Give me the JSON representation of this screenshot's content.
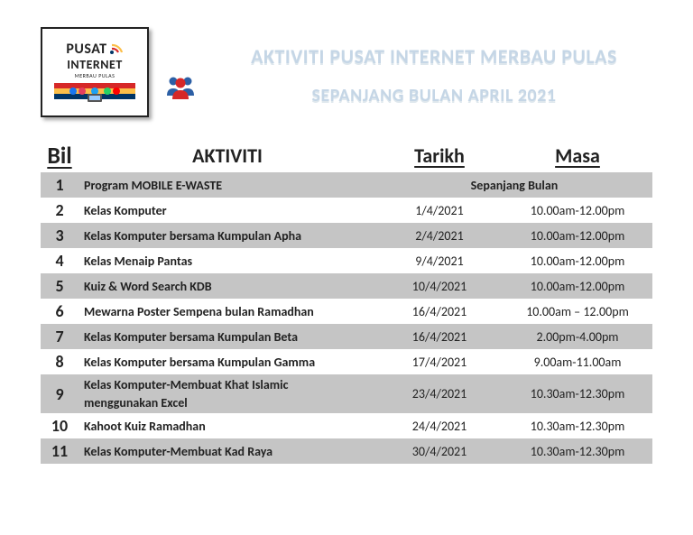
{
  "logo": {
    "top": "PUSAT",
    "bottom": "INTERNET",
    "sub": "MERBAU PULAS"
  },
  "title": "AKTIVITI PUSAT INTERNET MERBAU PULAS",
  "subtitle": "SEPANJANG BULAN APRIL 2021",
  "headers": {
    "bil": "Bil",
    "aktiviti": "AKTIVITI",
    "tarikh": "Tarikh",
    "masa": "Masa"
  },
  "row_span_text": "Sepanjang Bulan",
  "rows": [
    {
      "bil": "1",
      "aktiviti": "Program MOBILE E-WASTE",
      "tarikh": "",
      "masa": "",
      "alt": true,
      "span": true
    },
    {
      "bil": "2",
      "aktiviti": "Kelas Komputer",
      "tarikh": "1/4/2021",
      "masa": "10.00am-12.00pm",
      "alt": false
    },
    {
      "bil": "3",
      "aktiviti": "Kelas Komputer bersama Kumpulan Apha",
      "tarikh": "2/4/2021",
      "masa": "10.00am-12.00pm",
      "alt": true
    },
    {
      "bil": "4",
      "aktiviti": "Kelas Menaip Pantas",
      "tarikh": "9/4/2021",
      "masa": "10.00am-12.00pm",
      "alt": false
    },
    {
      "bil": "5",
      "aktiviti": "Kuiz & Word Search KDB",
      "tarikh": "10/4/2021",
      "masa": "10.00am-12.00pm",
      "alt": true
    },
    {
      "bil": "6",
      "aktiviti": "Mewarna Poster Sempena bulan Ramadhan",
      "tarikh": "16/4/2021",
      "masa": "10.00am – 12.00pm",
      "alt": false
    },
    {
      "bil": "7",
      "aktiviti": "Kelas Komputer bersama Kumpulan Beta",
      "tarikh": "16/4/2021",
      "masa": "2.00pm-4.00pm",
      "alt": true
    },
    {
      "bil": "8",
      "aktiviti": "Kelas Komputer bersama Kumpulan Gamma",
      "tarikh": "17/4/2021",
      "masa": "9.00am-11.00am",
      "alt": false
    },
    {
      "bil": "9",
      "aktiviti": "Kelas Komputer-Membuat Khat Islamic",
      "aktiviti2": "menggunakan Excel",
      "tarikh": "23/4/2021",
      "masa": "10.30am-12.30pm",
      "alt": true,
      "multi": true
    },
    {
      "bil": "10",
      "aktiviti": "Kahoot Kuiz Ramadhan",
      "tarikh": "24/4/2021",
      "masa": "10.30am-12.30pm",
      "alt": false
    },
    {
      "bil": "11",
      "aktiviti": "Kelas Komputer-Membuat Kad Raya",
      "tarikh": "30/4/2021",
      "masa": "10.30am-12.30pm",
      "alt": true
    }
  ],
  "colors": {
    "alt_row": "#c5c5c5",
    "title_text": "#c5d6e6"
  }
}
